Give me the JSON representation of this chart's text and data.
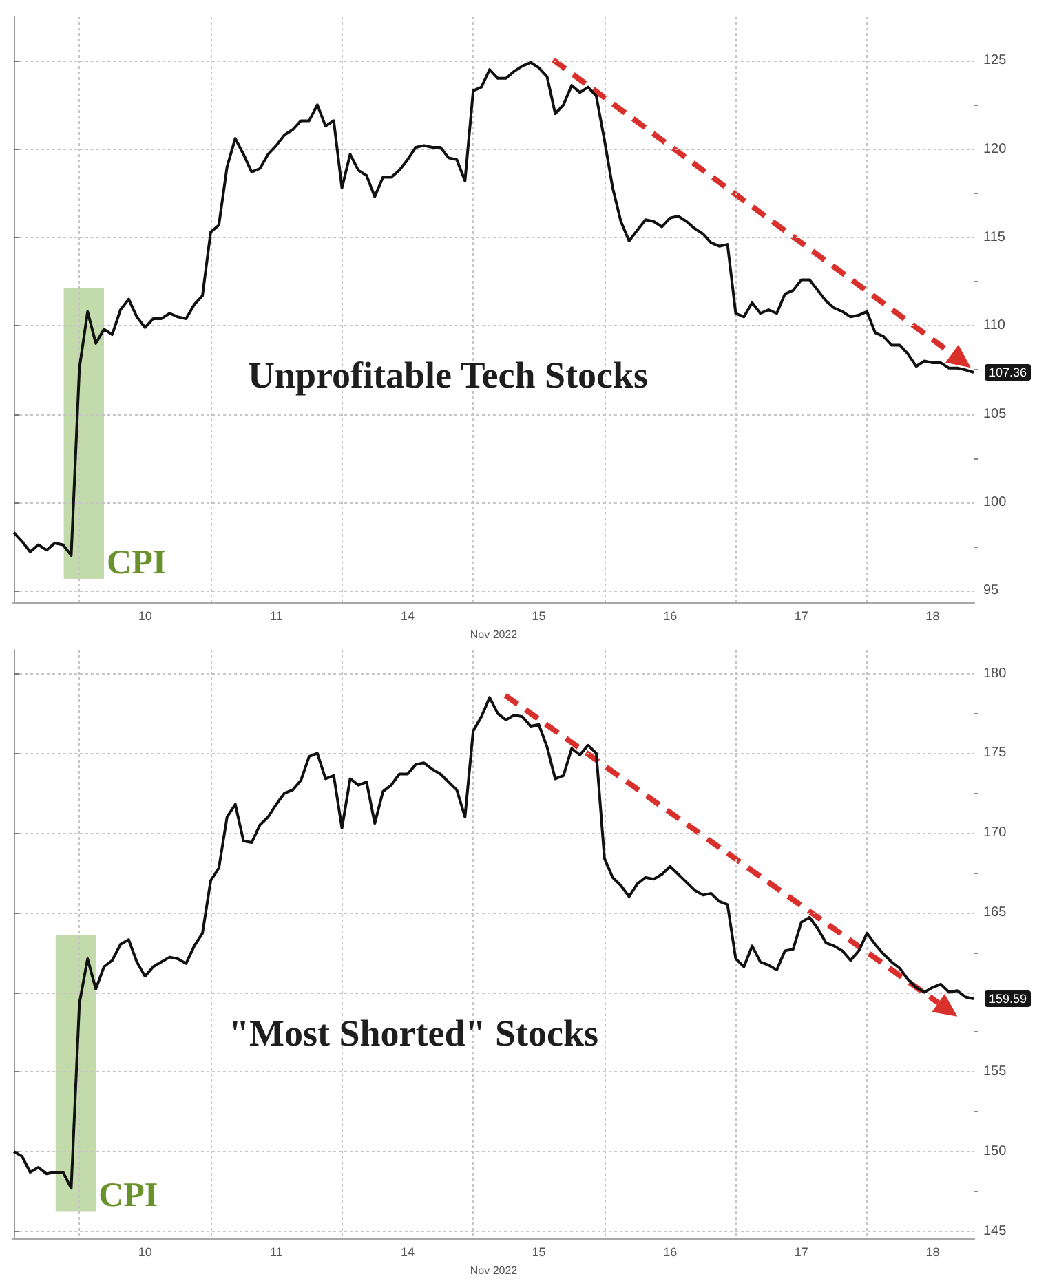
{
  "chart_data": [
    {
      "type": "line",
      "title": "Unprofitable Tech Stocks",
      "xlabel": "Nov 2022",
      "categories": [
        null,
        null,
        null,
        null,
        null,
        null,
        null,
        null,
        null,
        null,
        null,
        null,
        null,
        null,
        null,
        null,
        "10",
        null,
        null,
        null,
        null,
        null,
        null,
        null,
        null,
        null,
        null,
        null,
        null,
        null,
        null,
        null,
        "11",
        null,
        null,
        null,
        null,
        null,
        null,
        null,
        null,
        null,
        null,
        null,
        null,
        null,
        null,
        null,
        "14",
        null,
        null,
        null,
        null,
        null,
        null,
        null,
        null,
        null,
        null,
        null,
        null,
        null,
        null,
        null,
        "15",
        null,
        null,
        null,
        null,
        null,
        null,
        null,
        null,
        null,
        null,
        null,
        null,
        null,
        null,
        null,
        "16",
        null,
        null,
        null,
        null,
        null,
        null,
        null,
        null,
        null,
        null,
        null,
        null,
        null,
        null,
        null,
        "17",
        null,
        null,
        null,
        null,
        null,
        null,
        null,
        null,
        null,
        null,
        null,
        null,
        null,
        null,
        null,
        "18",
        null,
        null,
        null,
        null,
        null
      ],
      "ylim": [
        94.3,
        127.5
      ],
      "yticks": [
        95,
        {
          "value": 97.5,
          "label": null
        },
        100,
        {
          "value": 102.5,
          "label": null
        },
        105,
        {
          "value": 107.5,
          "label": null
        },
        110,
        {
          "value": 112.5,
          "label": null
        },
        115,
        {
          "value": 117.5,
          "label": null
        },
        120,
        {
          "value": 122.5,
          "label": null
        },
        125
      ],
      "grid": true,
      "series": [
        {
          "color": "#111111",
          "values": [
            98.3,
            97.8,
            97.2,
            97.6,
            97.3,
            97.7,
            97.6,
            97.0,
            107.6,
            110.8,
            109.0,
            109.8,
            109.5,
            110.9,
            111.5,
            110.5,
            109.9,
            110.4,
            110.4,
            110.7,
            110.5,
            110.4,
            111.2,
            111.7,
            115.3,
            115.7,
            119.0,
            120.6,
            119.7,
            118.7,
            118.9,
            119.7,
            120.2,
            120.8,
            121.1,
            121.6,
            121.6,
            122.5,
            121.3,
            121.6,
            117.8,
            119.7,
            118.8,
            118.5,
            117.3,
            118.4,
            118.4,
            118.8,
            119.4,
            120.1,
            120.2,
            120.1,
            120.1,
            119.5,
            119.4,
            118.2,
            123.3,
            123.5,
            124.5,
            124.0,
            124.0,
            124.4,
            124.7,
            124.9,
            124.6,
            124.1,
            122.0,
            122.5,
            123.6,
            123.2,
            123.5,
            123.0,
            120.5,
            117.8,
            115.9,
            114.8,
            115.4,
            116.0,
            115.9,
            115.6,
            116.1,
            116.2,
            115.9,
            115.5,
            115.2,
            114.7,
            114.5,
            114.6,
            110.7,
            110.5,
            111.3,
            110.7,
            110.9,
            110.7,
            111.8,
            112.0,
            112.6,
            112.6,
            112.0,
            111.4,
            111.0,
            110.8,
            110.5,
            110.6,
            110.8,
            109.6,
            109.4,
            108.9,
            108.9,
            108.4,
            107.7,
            108.0,
            107.9,
            107.9,
            107.6,
            107.6,
            107.5,
            107.36
          ],
          "value_labels": [
            null,
            null,
            null,
            null,
            null,
            null,
            null,
            null,
            null,
            null,
            null,
            null,
            null,
            null,
            null,
            null,
            null,
            null,
            null,
            null,
            null,
            null,
            null,
            null,
            null,
            null,
            null,
            null,
            null,
            null,
            null,
            null,
            null,
            null,
            null,
            null,
            null,
            null,
            null,
            null,
            null,
            null,
            null,
            null,
            null,
            null,
            null,
            null,
            null,
            null,
            null,
            null,
            null,
            null,
            null,
            null,
            null,
            null,
            null,
            null,
            null,
            null,
            null,
            null,
            null,
            null,
            null,
            null,
            null,
            null,
            null,
            null,
            null,
            null,
            null,
            null,
            null,
            null,
            null,
            null,
            null,
            null,
            null,
            null,
            null,
            null,
            null,
            null,
            null,
            null,
            null,
            null,
            null,
            null,
            null,
            null,
            null,
            null,
            null,
            null,
            null,
            null,
            null,
            null,
            null,
            null,
            null,
            null,
            null,
            null,
            null,
            null,
            null,
            null,
            null,
            null,
            null,
            "107.36"
          ]
        }
      ],
      "annotations": [
        "CPI"
      ]
    },
    {
      "type": "line",
      "title": "\"Most Shorted\" Stocks",
      "xlabel": "Nov 2022",
      "categories": [
        null,
        null,
        null,
        null,
        null,
        null,
        null,
        null,
        null,
        null,
        null,
        null,
        null,
        null,
        null,
        null,
        "10",
        null,
        null,
        null,
        null,
        null,
        null,
        null,
        null,
        null,
        null,
        null,
        null,
        null,
        null,
        null,
        "11",
        null,
        null,
        null,
        null,
        null,
        null,
        null,
        null,
        null,
        null,
        null,
        null,
        null,
        null,
        null,
        "14",
        null,
        null,
        null,
        null,
        null,
        null,
        null,
        null,
        null,
        null,
        null,
        null,
        null,
        null,
        null,
        "15",
        null,
        null,
        null,
        null,
        null,
        null,
        null,
        null,
        null,
        null,
        null,
        null,
        null,
        null,
        null,
        "16",
        null,
        null,
        null,
        null,
        null,
        null,
        null,
        null,
        null,
        null,
        null,
        null,
        null,
        null,
        null,
        "17",
        null,
        null,
        null,
        null,
        null,
        null,
        null,
        null,
        null,
        null,
        null,
        null,
        null,
        null,
        null,
        "18",
        null,
        null,
        null,
        null,
        null
      ],
      "ylim": [
        144.5,
        181.5
      ],
      "yticks": [
        145,
        {
          "value": 147.5,
          "label": null
        },
        150,
        {
          "value": 152.5,
          "label": null
        },
        155,
        {
          "value": 157.5,
          "label": null
        },
        {
          "value": 160,
          "label": null
        },
        {
          "value": 162.5,
          "label": null
        },
        165,
        {
          "value": 167.5,
          "label": null
        },
        170,
        {
          "value": 172.5,
          "label": null
        },
        175,
        {
          "value": 177.5,
          "label": null
        },
        180
      ],
      "grid": true,
      "series": [
        {
          "color": "#111111",
          "values": [
            150.0,
            149.7,
            148.7,
            149.0,
            148.6,
            148.7,
            148.7,
            147.7,
            159.3,
            162.1,
            160.2,
            161.6,
            162.0,
            163.0,
            163.3,
            161.9,
            161.0,
            161.6,
            161.9,
            162.2,
            162.1,
            161.8,
            162.9,
            163.7,
            167.0,
            167.8,
            171.0,
            171.8,
            169.5,
            169.4,
            170.5,
            171.0,
            171.8,
            172.5,
            172.7,
            173.3,
            174.8,
            175.0,
            173.4,
            173.6,
            170.3,
            173.4,
            173.0,
            173.2,
            170.6,
            172.6,
            173.0,
            173.7,
            173.7,
            174.3,
            174.4,
            174.0,
            173.7,
            173.2,
            172.7,
            171.0,
            176.4,
            177.3,
            178.5,
            177.5,
            177.1,
            177.4,
            177.3,
            176.7,
            176.8,
            175.4,
            173.4,
            173.6,
            175.3,
            174.9,
            175.5,
            175.0,
            168.4,
            167.2,
            166.7,
            166.0,
            166.8,
            167.2,
            167.1,
            167.4,
            167.9,
            167.4,
            166.9,
            166.4,
            166.1,
            166.2,
            165.7,
            165.5,
            162.1,
            161.6,
            162.9,
            161.9,
            161.7,
            161.4,
            162.6,
            162.7,
            164.4,
            164.7,
            164.0,
            163.1,
            162.9,
            162.6,
            162.0,
            162.6,
            163.7,
            163.0,
            162.4,
            161.9,
            161.5,
            160.8,
            160.3,
            160.0,
            160.3,
            160.5,
            160.0,
            160.1,
            159.7,
            159.59
          ],
          "value_labels": [
            null,
            null,
            null,
            null,
            null,
            null,
            null,
            null,
            null,
            null,
            null,
            null,
            null,
            null,
            null,
            null,
            null,
            null,
            null,
            null,
            null,
            null,
            null,
            null,
            null,
            null,
            null,
            null,
            null,
            null,
            null,
            null,
            null,
            null,
            null,
            null,
            null,
            null,
            null,
            null,
            null,
            null,
            null,
            null,
            null,
            null,
            null,
            null,
            null,
            null,
            null,
            null,
            null,
            null,
            null,
            null,
            null,
            null,
            null,
            null,
            null,
            null,
            null,
            null,
            null,
            null,
            null,
            null,
            null,
            null,
            null,
            null,
            null,
            null,
            null,
            null,
            null,
            null,
            null,
            null,
            null,
            null,
            null,
            null,
            null,
            null,
            null,
            null,
            null,
            null,
            null,
            null,
            null,
            null,
            null,
            null,
            null,
            null,
            null,
            null,
            null,
            null,
            null,
            null,
            null,
            null,
            null,
            null,
            null,
            null,
            null,
            null,
            null,
            null,
            null,
            null,
            null,
            "159.59"
          ]
        }
      ],
      "annotations": [
        "CPI"
      ]
    }
  ]
}
